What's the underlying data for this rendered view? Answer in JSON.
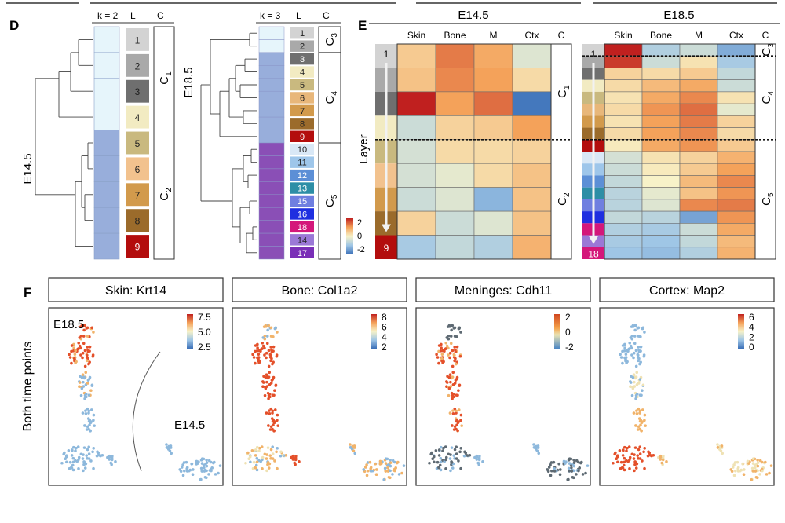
{
  "panel_d": {
    "letter": "D",
    "e145": {
      "side_label": "E14.5",
      "k_label": "k = 2",
      "l_header": "L",
      "c_header": "C",
      "clusters": [
        "C1",
        "C2"
      ],
      "layers": [
        "1",
        "2",
        "3",
        "4",
        "5",
        "6",
        "7",
        "8",
        "9"
      ],
      "layer_colors": [
        "#d3d3d3",
        "#a9a9a9",
        "#6f6f6f",
        "#f2ebc2",
        "#c9b97f",
        "#f2c28e",
        "#d29a4c",
        "#9b6b2b",
        "#b30d0d"
      ],
      "k_colors": [
        "#e6f5fb",
        "#e6f5fb",
        "#e6f5fb",
        "#e6f5fb",
        "#98aedb",
        "#98aedb",
        "#98aedb",
        "#98aedb",
        "#98aedb"
      ]
    },
    "e185": {
      "side_label": "E18.5",
      "k_label": "k = 3",
      "l_header": "L",
      "c_header": "C",
      "clusters": [
        "C3",
        "C4",
        "C5"
      ],
      "layers": [
        "1",
        "2",
        "3",
        "4",
        "5",
        "6",
        "7",
        "8",
        "9",
        "10",
        "11",
        "12",
        "13",
        "15",
        "16",
        "18",
        "14",
        "17"
      ],
      "layer_colors": [
        "#d3d3d3",
        "#a9a9a9",
        "#6f6f6f",
        "#f2ebc2",
        "#c9b97f",
        "#e8b77a",
        "#d29a4c",
        "#9b6b2b",
        "#b30d0d",
        "#d9e8f6",
        "#9ec6ea",
        "#5c8fd6",
        "#2d8ea6",
        "#6f7fe0",
        "#1f2fe0",
        "#d4177a",
        "#9b78d6",
        "#7a2fb7"
      ],
      "k_colors": [
        "#e6f5fb",
        "#e6f5fb",
        "#98aedb",
        "#98aedb",
        "#98aedb",
        "#98aedb",
        "#98aedb",
        "#98aedb",
        "#98aedb",
        "#8a4fb6",
        "#8a4fb6",
        "#8a4fb6",
        "#8a4fb6",
        "#8a4fb6",
        "#8a4fb6",
        "#8a4fb6",
        "#8a4fb6",
        "#8a4fb6"
      ]
    }
  },
  "panel_e": {
    "letter": "E",
    "layer_axis_label": "Layer",
    "colorbar_ticks": [
      "2",
      "0",
      "-2"
    ],
    "e145": {
      "title": "E14.5",
      "columns": [
        "Skin",
        "Bone",
        "M",
        "Ctx",
        "C"
      ],
      "clusters": [
        "C1",
        "C2"
      ],
      "first_layer": "1",
      "last_layer": "9",
      "last_layer_color": "#b30d0d",
      "layer_colors": [
        "#d3d3d3",
        "#a9a9a9",
        "#6f6f6f",
        "#f2ebc2",
        "#c9b97f",
        "#f2c28e",
        "#d29a4c",
        "#9b6b2b",
        "#b30d0d"
      ],
      "values": [
        [
          0.5,
          1.3,
          0.9,
          -0.3
        ],
        [
          0.6,
          1.2,
          1.0,
          0.3
        ],
        [
          2.0,
          1.0,
          1.4,
          -1.9
        ],
        [
          -0.5,
          0.4,
          0.5,
          1.0
        ],
        [
          -0.4,
          0.3,
          0.3,
          0.4
        ],
        [
          -0.4,
          -0.2,
          0.3,
          0.6
        ],
        [
          -0.5,
          -0.3,
          -1.2,
          0.6
        ],
        [
          0.4,
          -0.5,
          -0.3,
          0.6
        ],
        [
          -0.9,
          -0.6,
          -0.8,
          0.8
        ]
      ]
    },
    "e185": {
      "title": "E18.5",
      "columns": [
        "Skin",
        "Bone",
        "M",
        "Ctx",
        "C"
      ],
      "clusters": [
        "C3",
        "C4",
        "C5"
      ],
      "first_layer": "1",
      "last_layer": "18",
      "last_layer_color": "#d4177a",
      "layer_colors": [
        "#d3d3d3",
        "#a9a9a9",
        "#6f6f6f",
        "#f2ebc2",
        "#c9b97f",
        "#e8b77a",
        "#d29a4c",
        "#9b6b2b",
        "#b30d0d",
        "#d9e8f6",
        "#9ec6ea",
        "#5c8fd6",
        "#2d8ea6",
        "#6f7fe0",
        "#1f2fe0",
        "#d4177a",
        "#9b78d6",
        "#7a2fb7"
      ],
      "values": [
        [
          2.0,
          -0.8,
          -0.5,
          -1.3
        ],
        [
          1.8,
          -0.5,
          0.2,
          -0.9
        ],
        [
          0.4,
          0.3,
          0.5,
          -0.6
        ],
        [
          0.3,
          0.7,
          0.9,
          -0.5
        ],
        [
          0.2,
          0.9,
          1.2,
          0.2
        ],
        [
          0.3,
          1.1,
          1.4,
          -0.2
        ],
        [
          0.2,
          1.0,
          1.3,
          0.4
        ],
        [
          0.3,
          1.0,
          1.2,
          0.3
        ],
        [
          0.1,
          0.9,
          1.1,
          0.5
        ],
        [
          -0.4,
          0.2,
          0.4,
          0.8
        ],
        [
          -0.5,
          0.1,
          0.5,
          1.0
        ],
        [
          -0.6,
          0.0,
          0.7,
          1.2
        ],
        [
          -0.7,
          -0.2,
          0.6,
          1.1
        ],
        [
          -0.7,
          -0.3,
          1.2,
          1.3
        ],
        [
          -0.6,
          -0.7,
          -1.4,
          1.1
        ],
        [
          -0.8,
          -0.9,
          -0.5,
          0.9
        ],
        [
          -0.9,
          -1.0,
          -0.6,
          0.7
        ],
        [
          -1.0,
          -1.1,
          -0.8,
          0.8
        ]
      ]
    }
  },
  "panel_f": {
    "letter": "F",
    "row_label": "Both time points",
    "timepoint_labels": [
      "E18.5",
      "E14.5"
    ],
    "panels": [
      {
        "title": "Skin: Krt14",
        "ticks": [
          "7.5",
          "5.0",
          "2.5"
        ],
        "scheme": "skin"
      },
      {
        "title": "Bone: Col1a2",
        "ticks": [
          "8",
          "6",
          "4",
          "2"
        ],
        "scheme": "bone"
      },
      {
        "title": "Meninges: Cdh11",
        "ticks": [
          "2",
          "0",
          "-2"
        ],
        "scheme": "men"
      },
      {
        "title": "Cortex: Map2",
        "ticks": [
          "6",
          "4",
          "2",
          "0"
        ],
        "scheme": "ctx"
      }
    ]
  }
}
